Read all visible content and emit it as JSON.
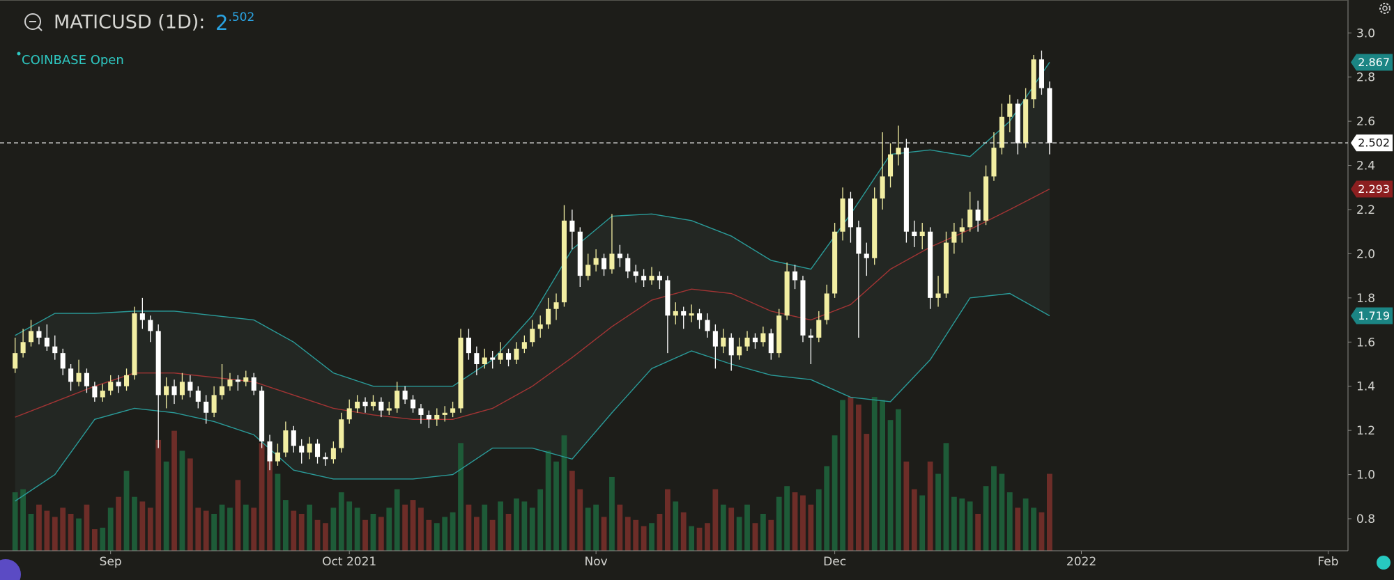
{
  "chart_data": {
    "type": "candlestick",
    "title": "MATICUSD (1D):",
    "price_main": "2",
    "price_sup": ".502",
    "legend": "COINBASE Open",
    "open": [
      1.48,
      1.55,
      1.6,
      1.65,
      1.62,
      1.58,
      1.55,
      1.48,
      1.42,
      1.46,
      1.4,
      1.35,
      1.38,
      1.42,
      1.4,
      1.45,
      1.73,
      1.7,
      1.65,
      1.36,
      1.4,
      1.36,
      1.42,
      1.38,
      1.33,
      1.28,
      1.36,
      1.4,
      1.43,
      1.42,
      1.44,
      1.38,
      1.15,
      1.06,
      1.1,
      1.2,
      1.13,
      1.1,
      1.14,
      1.08,
      1.07,
      1.12,
      1.25,
      1.3,
      1.33,
      1.31,
      1.33,
      1.29,
      1.3,
      1.38,
      1.34,
      1.3,
      1.27,
      1.25,
      1.27,
      1.28,
      1.3,
      1.62,
      1.55,
      1.5,
      1.53,
      1.52,
      1.55,
      1.52,
      1.57,
      1.6,
      1.66,
      1.68,
      1.75,
      1.78,
      2.15,
      2.1,
      1.9,
      1.95,
      1.98,
      1.93,
      2.0,
      1.98,
      1.92,
      1.9,
      1.88,
      1.9,
      1.88,
      1.72,
      1.74,
      1.72,
      1.73,
      1.7,
      1.65,
      1.58,
      1.62,
      1.54,
      1.58,
      1.62,
      1.6,
      1.64,
      1.55,
      1.72,
      1.92,
      1.88,
      1.63,
      1.62,
      1.7,
      1.82,
      2.1,
      2.25,
      2.12,
      2.0,
      1.98,
      2.25,
      2.35,
      2.45,
      2.48,
      2.1,
      2.08,
      2.1,
      1.8,
      1.82,
      2.05,
      2.1,
      2.12,
      2.2,
      2.15,
      2.35,
      2.48,
      2.62,
      2.68,
      2.5,
      2.7,
      2.88,
      2.75
    ],
    "high": [
      1.62,
      1.66,
      1.7,
      1.67,
      1.68,
      1.63,
      1.57,
      1.5,
      1.52,
      1.48,
      1.42,
      1.41,
      1.45,
      1.45,
      1.48,
      1.76,
      1.8,
      1.72,
      1.68,
      1.44,
      1.43,
      1.46,
      1.45,
      1.4,
      1.36,
      1.4,
      1.5,
      1.46,
      1.45,
      1.47,
      1.46,
      1.4,
      1.18,
      1.14,
      1.24,
      1.22,
      1.16,
      1.17,
      1.16,
      1.1,
      1.15,
      1.28,
      1.34,
      1.36,
      1.35,
      1.36,
      1.35,
      1.33,
      1.42,
      1.4,
      1.36,
      1.32,
      1.29,
      1.3,
      1.31,
      1.33,
      1.66,
      1.66,
      1.58,
      1.57,
      1.56,
      1.6,
      1.57,
      1.6,
      1.63,
      1.7,
      1.72,
      1.8,
      1.82,
      2.22,
      2.2,
      2.12,
      2.0,
      2.02,
      2.0,
      2.18,
      2.04,
      2.0,
      1.95,
      1.93,
      1.94,
      1.92,
      1.9,
      1.78,
      1.76,
      1.77,
      1.75,
      1.73,
      1.68,
      1.66,
      1.64,
      1.62,
      1.65,
      1.64,
      1.67,
      1.66,
      1.75,
      1.96,
      1.95,
      1.9,
      1.66,
      1.74,
      1.86,
      2.14,
      2.3,
      2.28,
      2.15,
      2.05,
      2.3,
      2.55,
      2.5,
      2.58,
      2.52,
      2.15,
      2.14,
      2.12,
      1.9,
      2.1,
      2.14,
      2.16,
      2.28,
      2.24,
      2.4,
      2.55,
      2.68,
      2.72,
      2.7,
      2.75,
      2.9,
      2.92,
      2.78
    ],
    "low": [
      1.46,
      1.53,
      1.58,
      1.59,
      1.56,
      1.52,
      1.45,
      1.38,
      1.4,
      1.37,
      1.33,
      1.33,
      1.36,
      1.37,
      1.38,
      1.43,
      1.66,
      1.6,
      1.12,
      1.3,
      1.32,
      1.34,
      1.35,
      1.3,
      1.23,
      1.26,
      1.34,
      1.38,
      1.38,
      1.4,
      1.36,
      1.12,
      1.02,
      1.04,
      1.08,
      1.1,
      1.05,
      1.07,
      1.05,
      1.04,
      1.05,
      1.1,
      1.23,
      1.28,
      1.28,
      1.29,
      1.26,
      1.27,
      1.28,
      1.32,
      1.28,
      1.23,
      1.21,
      1.22,
      1.24,
      1.26,
      1.28,
      1.52,
      1.45,
      1.48,
      1.48,
      1.5,
      1.49,
      1.5,
      1.55,
      1.58,
      1.62,
      1.66,
      1.7,
      1.76,
      2.02,
      1.85,
      1.88,
      1.92,
      1.9,
      1.91,
      1.94,
      1.89,
      1.87,
      1.85,
      1.86,
      1.84,
      1.55,
      1.68,
      1.66,
      1.69,
      1.66,
      1.62,
      1.48,
      1.55,
      1.47,
      1.52,
      1.56,
      1.57,
      1.58,
      1.52,
      1.53,
      1.7,
      1.84,
      1.6,
      1.5,
      1.6,
      1.68,
      1.8,
      2.06,
      2.05,
      1.62,
      1.9,
      1.95,
      2.2,
      2.3,
      2.4,
      2.05,
      2.03,
      2.02,
      1.75,
      1.76,
      1.8,
      2.0,
      2.05,
      2.1,
      2.1,
      2.13,
      2.33,
      2.45,
      2.55,
      2.45,
      2.48,
      2.66,
      2.72,
      2.45
    ],
    "close": [
      1.55,
      1.6,
      1.65,
      1.62,
      1.58,
      1.55,
      1.48,
      1.42,
      1.46,
      1.4,
      1.35,
      1.38,
      1.42,
      1.4,
      1.45,
      1.73,
      1.7,
      1.65,
      1.36,
      1.4,
      1.36,
      1.42,
      1.38,
      1.33,
      1.28,
      1.36,
      1.4,
      1.43,
      1.42,
      1.44,
      1.38,
      1.15,
      1.06,
      1.1,
      1.2,
      1.13,
      1.1,
      1.14,
      1.08,
      1.07,
      1.12,
      1.25,
      1.3,
      1.33,
      1.31,
      1.33,
      1.29,
      1.3,
      1.38,
      1.34,
      1.3,
      1.27,
      1.25,
      1.27,
      1.28,
      1.3,
      1.62,
      1.55,
      1.5,
      1.53,
      1.52,
      1.55,
      1.52,
      1.57,
      1.6,
      1.66,
      1.68,
      1.75,
      1.78,
      2.15,
      2.1,
      1.9,
      1.95,
      1.98,
      1.93,
      2.0,
      1.98,
      1.92,
      1.9,
      1.88,
      1.9,
      1.88,
      1.72,
      1.74,
      1.72,
      1.73,
      1.7,
      1.65,
      1.58,
      1.62,
      1.54,
      1.58,
      1.62,
      1.6,
      1.64,
      1.55,
      1.72,
      1.92,
      1.88,
      1.63,
      1.62,
      1.7,
      1.82,
      2.1,
      2.25,
      2.12,
      2.0,
      1.98,
      2.25,
      2.35,
      2.45,
      2.48,
      2.1,
      2.08,
      2.1,
      1.8,
      1.82,
      2.05,
      2.1,
      2.12,
      2.2,
      2.15,
      2.35,
      2.48,
      2.62,
      2.68,
      2.5,
      2.7,
      2.88,
      2.75,
      2.502
    ],
    "volume": [
      38,
      40,
      24,
      30,
      26,
      22,
      28,
      24,
      21,
      30,
      14,
      15,
      28,
      35,
      52,
      35,
      32,
      28,
      72,
      58,
      78,
      65,
      60,
      28,
      26,
      24,
      30,
      28,
      46,
      30,
      28,
      70,
      62,
      50,
      33,
      26,
      24,
      30,
      20,
      18,
      28,
      38,
      32,
      28,
      20,
      24,
      22,
      28,
      40,
      30,
      33,
      28,
      20,
      18,
      22,
      25,
      70,
      30,
      22,
      30,
      20,
      32,
      24,
      34,
      32,
      28,
      40,
      65,
      58,
      75,
      52,
      40,
      28,
      30,
      22,
      48,
      30,
      22,
      20,
      16,
      18,
      24,
      40,
      32,
      25,
      16,
      15,
      18,
      40,
      30,
      28,
      22,
      30,
      18,
      24,
      20,
      35,
      42,
      38,
      36,
      30,
      40,
      55,
      75,
      98,
      100,
      95,
      76,
      100,
      98,
      85,
      92,
      58,
      40,
      36,
      58,
      50,
      70,
      35,
      34,
      32,
      24,
      42,
      55,
      50,
      38,
      28,
      34,
      28,
      25,
      50
    ],
    "bands": {
      "x": [
        0,
        5,
        10,
        15,
        20,
        25,
        30,
        35,
        40,
        45,
        50,
        55,
        60,
        65,
        70,
        75,
        80,
        85,
        90,
        95,
        100,
        105,
        110,
        115,
        120,
        125,
        130
      ],
      "upper": [
        1.63,
        1.73,
        1.73,
        1.74,
        1.74,
        1.72,
        1.7,
        1.6,
        1.46,
        1.4,
        1.4,
        1.4,
        1.52,
        1.72,
        2.02,
        2.17,
        2.18,
        2.15,
        2.08,
        1.97,
        1.93,
        2.18,
        2.45,
        2.47,
        2.44,
        2.6,
        2.867
      ],
      "middle": [
        1.26,
        1.33,
        1.4,
        1.46,
        1.46,
        1.44,
        1.42,
        1.36,
        1.3,
        1.27,
        1.25,
        1.25,
        1.3,
        1.4,
        1.53,
        1.67,
        1.79,
        1.84,
        1.82,
        1.74,
        1.7,
        1.77,
        1.93,
        2.03,
        2.11,
        2.2,
        2.293
      ],
      "lower": [
        0.88,
        1.0,
        1.25,
        1.3,
        1.28,
        1.24,
        1.18,
        1.02,
        0.98,
        0.98,
        0.98,
        1.0,
        1.12,
        1.12,
        1.07,
        1.28,
        1.48,
        1.56,
        1.5,
        1.45,
        1.43,
        1.35,
        1.33,
        1.52,
        1.8,
        1.82,
        1.719
      ]
    },
    "xlim": [
      -1.9,
      167.5
    ],
    "xticks": [
      {
        "value": 12,
        "label": "Sep"
      },
      {
        "value": 42,
        "label": "Oct 2021"
      },
      {
        "value": 73,
        "label": "Nov"
      },
      {
        "value": 103,
        "label": "Dec"
      },
      {
        "value": 134,
        "label": "2022"
      },
      {
        "value": 165,
        "label": "Feb"
      }
    ],
    "ylim": [
      0.655,
      3.149
    ],
    "yticks": [
      0.8,
      {
        "value": 1,
        "label": "1.0"
      },
      1.2,
      1.4,
      1.6,
      1.8,
      {
        "value": 2,
        "label": "2.0"
      },
      2.2,
      2.4,
      2.6,
      2.8,
      {
        "value": 3,
        "label": "3.0"
      }
    ],
    "volume_ylim": [
      0,
      358
    ],
    "colors": {
      "up": "#f2eea2",
      "down": "#ffffff",
      "volume_up": "#1e5b38",
      "volume_down": "#6d2d28",
      "band": "#2a9c9a",
      "middle": "#a33434",
      "band_fill": "#232723"
    }
  }
}
